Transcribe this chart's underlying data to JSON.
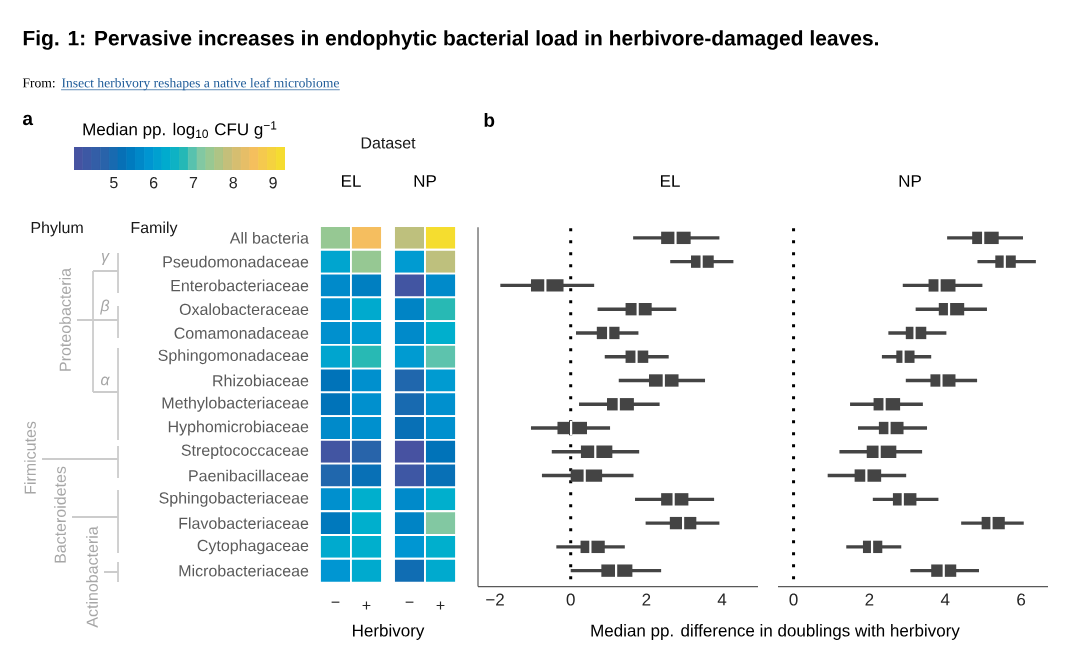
{
  "chart_data": [
    {
      "type": "heatmap",
      "xlabel": "Herbivory",
      "clabel": "Median pp. log$_{10}$ CFU g$^{−1}$",
      "clim": [
        4.0,
        9.3
      ],
      "cticks": [
        5,
        6,
        7,
        8,
        9
      ],
      "categories": [
        "−",
        "+",
        "−",
        "+"
      ],
      "y_categories": [
        "All bacteria",
        "Pseudomonadaceae",
        "Enterobacteriaceae",
        "Oxalobacteraceae",
        "Comamonadaceae",
        "Sphingomonadaceae",
        "Rhizobiaceae",
        "Methylobacteriaceae",
        "Hyphomicrobiaceae",
        "Streptococcaceae",
        "Paenibacillaceae",
        "Sphingobacteriaceae",
        "Flavobacteriaceae",
        "Cytophagaceae",
        "Microbacteriaceae"
      ],
      "cells": [
        [
          7.4,
          8.5,
          7.8,
          9.2
        ],
        [
          6.2,
          7.4,
          6.0,
          7.8
        ],
        [
          5.7,
          5.5,
          4.2,
          5.7
        ],
        [
          5.8,
          6.3,
          5.6,
          6.8
        ],
        [
          5.8,
          6.0,
          5.7,
          6.4
        ],
        [
          6.2,
          6.8,
          6.0,
          7.0
        ],
        [
          5.3,
          5.8,
          4.9,
          6.0
        ],
        [
          5.3,
          5.8,
          5.0,
          5.8
        ],
        [
          5.7,
          5.8,
          5.2,
          5.8
        ],
        [
          4.2,
          4.8,
          4.1,
          5.3
        ],
        [
          4.9,
          5.2,
          4.3,
          5.2
        ],
        [
          5.8,
          6.4,
          5.7,
          6.4
        ],
        [
          5.4,
          6.4,
          5.6,
          7.2
        ],
        [
          6.3,
          6.4,
          5.9,
          6.4
        ],
        [
          5.9,
          6.3,
          5.1,
          6.3
        ]
      ],
      "annotations": [
        "Fig. 1: Pervasive increases in endophytic bacterial load in herbivore-damaged leaves.",
        "From:",
        "Insect herbivory reshapes a native leaf microbiome",
        "a",
        "Dataset",
        "Phylum",
        "Family",
        "Proteobacteria",
        "Firmicutes",
        "Bacteroidetes",
        "Actinobacteria",
        "γ",
        "β",
        "α",
        "EL",
        "NP"
      ]
    },
    {
      "type": "box",
      "orientation": "horizontal",
      "title": "EL",
      "xlabel": "Median pp. difference in doublings with herbivory",
      "color": "#444444",
      "tick_labels": "x",
      "annotations": [
        "b"
      ],
      "xlim": [
        -2.45,
        4.95
      ],
      "xticks": [
        {
          "value": -2,
          "label": "−2"
        },
        0,
        2,
        4
      ],
      "ref_lines": [
        {
          "axis": "x",
          "value": 0,
          "line_style": "dotted",
          "color": "#000000"
        }
      ],
      "categories": [
        null,
        null,
        null,
        null,
        null,
        null,
        null,
        null,
        null,
        null,
        null,
        null,
        null,
        null,
        null
      ],
      "boxes": [
        {
          "low": 1.65,
          "q1": 2.39,
          "median": 2.77,
          "q3": 3.17,
          "high": 3.93
        },
        {
          "low": 2.63,
          "q1": 3.18,
          "median": 3.46,
          "q3": 3.78,
          "high": 4.3
        },
        {
          "low": -1.86,
          "q1": -1.05,
          "median": -0.67,
          "q3": -0.19,
          "high": 0.62
        },
        {
          "low": 0.71,
          "q1": 1.45,
          "median": 1.77,
          "q3": 2.14,
          "high": 2.79
        },
        {
          "low": 0.14,
          "q1": 0.69,
          "median": 0.99,
          "q3": 1.29,
          "high": 1.79
        },
        {
          "low": 0.9,
          "q1": 1.45,
          "median": 1.74,
          "q3": 2.05,
          "high": 2.59
        },
        {
          "low": 1.27,
          "q1": 2.07,
          "median": 2.46,
          "q3": 2.85,
          "high": 3.55
        },
        {
          "low": 0.22,
          "q1": 0.96,
          "median": 1.27,
          "q3": 1.67,
          "high": 2.35
        },
        {
          "low": -1.05,
          "q1": -0.35,
          "median": 0.01,
          "q3": 0.43,
          "high": 1.04
        },
        {
          "low": -0.5,
          "q1": 0.27,
          "median": 0.65,
          "q3": 1.1,
          "high": 1.81
        },
        {
          "low": -0.76,
          "q1": 0.0,
          "median": 0.37,
          "q3": 0.83,
          "high": 1.66
        },
        {
          "low": 1.7,
          "q1": 2.39,
          "median": 2.72,
          "q3": 3.11,
          "high": 3.79
        },
        {
          "low": 1.98,
          "q1": 2.62,
          "median": 2.97,
          "q3": 3.32,
          "high": 3.93
        },
        {
          "low": -0.38,
          "q1": 0.26,
          "median": 0.52,
          "q3": 0.9,
          "high": 1.43
        },
        {
          "low": 0.0,
          "q1": 0.81,
          "median": 1.2,
          "q3": 1.63,
          "high": 2.39
        }
      ]
    },
    {
      "type": "box",
      "orientation": "horizontal",
      "title": "NP",
      "color": "#444444",
      "tick_labels": "x",
      "xlim": [
        -0.41,
        6.71
      ],
      "xticks": [
        0,
        2,
        4,
        6
      ],
      "ref_lines": [
        {
          "axis": "x",
          "value": 0,
          "line_style": "dotted",
          "color": "#000000"
        }
      ],
      "categories": [
        null,
        null,
        null,
        null,
        null,
        null,
        null,
        null,
        null,
        null,
        null,
        null,
        null,
        null,
        null
      ],
      "boxes": [
        {
          "low": 4.05,
          "q1": 4.71,
          "median": 5.0,
          "q3": 5.41,
          "high": 6.05
        },
        {
          "low": 4.85,
          "q1": 5.32,
          "median": 5.57,
          "q3": 5.86,
          "high": 6.39
        },
        {
          "low": 2.88,
          "q1": 3.56,
          "median": 3.85,
          "q3": 4.27,
          "high": 4.98
        },
        {
          "low": 3.22,
          "q1": 3.83,
          "median": 4.1,
          "q3": 4.5,
          "high": 5.1
        },
        {
          "low": 2.5,
          "q1": 2.96,
          "median": 3.19,
          "q3": 3.5,
          "high": 4.03
        },
        {
          "low": 2.33,
          "q1": 2.71,
          "median": 2.9,
          "q3": 3.19,
          "high": 3.63
        },
        {
          "low": 2.96,
          "q1": 3.61,
          "median": 3.9,
          "q3": 4.27,
          "high": 4.84
        },
        {
          "low": 1.49,
          "q1": 2.11,
          "median": 2.4,
          "q3": 2.81,
          "high": 3.41
        },
        {
          "low": 1.7,
          "q1": 2.25,
          "median": 2.53,
          "q3": 2.9,
          "high": 3.52
        },
        {
          "low": 1.21,
          "q1": 1.93,
          "median": 2.27,
          "q3": 2.71,
          "high": 3.39
        },
        {
          "low": 0.9,
          "q1": 1.61,
          "median": 1.92,
          "q3": 2.31,
          "high": 2.97
        },
        {
          "low": 2.09,
          "q1": 2.62,
          "median": 2.88,
          "q3": 3.24,
          "high": 3.82
        },
        {
          "low": 4.42,
          "q1": 4.96,
          "median": 5.22,
          "q3": 5.57,
          "high": 6.07
        },
        {
          "low": 1.39,
          "q1": 1.83,
          "median": 2.07,
          "q3": 2.34,
          "high": 2.84
        },
        {
          "low": 3.08,
          "q1": 3.63,
          "median": 3.96,
          "q3": 4.29,
          "high": 4.89
        }
      ]
    }
  ]
}
